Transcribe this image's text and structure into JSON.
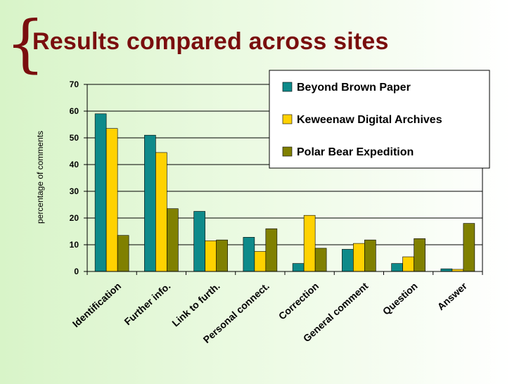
{
  "title": "Results compared across sites",
  "colors": {
    "title": "#7a0e0e",
    "brace": "#7a0e0e"
  },
  "chart_data": {
    "type": "bar",
    "categories": [
      "Identification",
      "Further info.",
      "Link to furth.",
      "Personal connect.",
      "Correction",
      "General comment",
      "Question",
      "Answer"
    ],
    "series": [
      {
        "name": "Beyond Brown Paper",
        "color": "#0e8a8a",
        "values": [
          59,
          51,
          22.5,
          12.8,
          3,
          8.3,
          3,
          1
        ]
      },
      {
        "name": "Keweenaw Digital Archives",
        "color": "#ffd200",
        "values": [
          53.5,
          44.5,
          11.5,
          7.5,
          21,
          10.5,
          5.5,
          0.8
        ]
      },
      {
        "name": "Polar Bear Expedition",
        "color": "#808000",
        "values": [
          13.5,
          23.5,
          11.8,
          16,
          8.7,
          11.8,
          12.3,
          18
        ]
      }
    ],
    "ylabel": "percentage of comments",
    "xlabel": "",
    "ylim": [
      0,
      70
    ],
    "yticks": [
      0,
      10,
      20,
      30,
      40,
      50,
      60,
      70
    ],
    "grid": true,
    "legend_position": "top-right"
  }
}
